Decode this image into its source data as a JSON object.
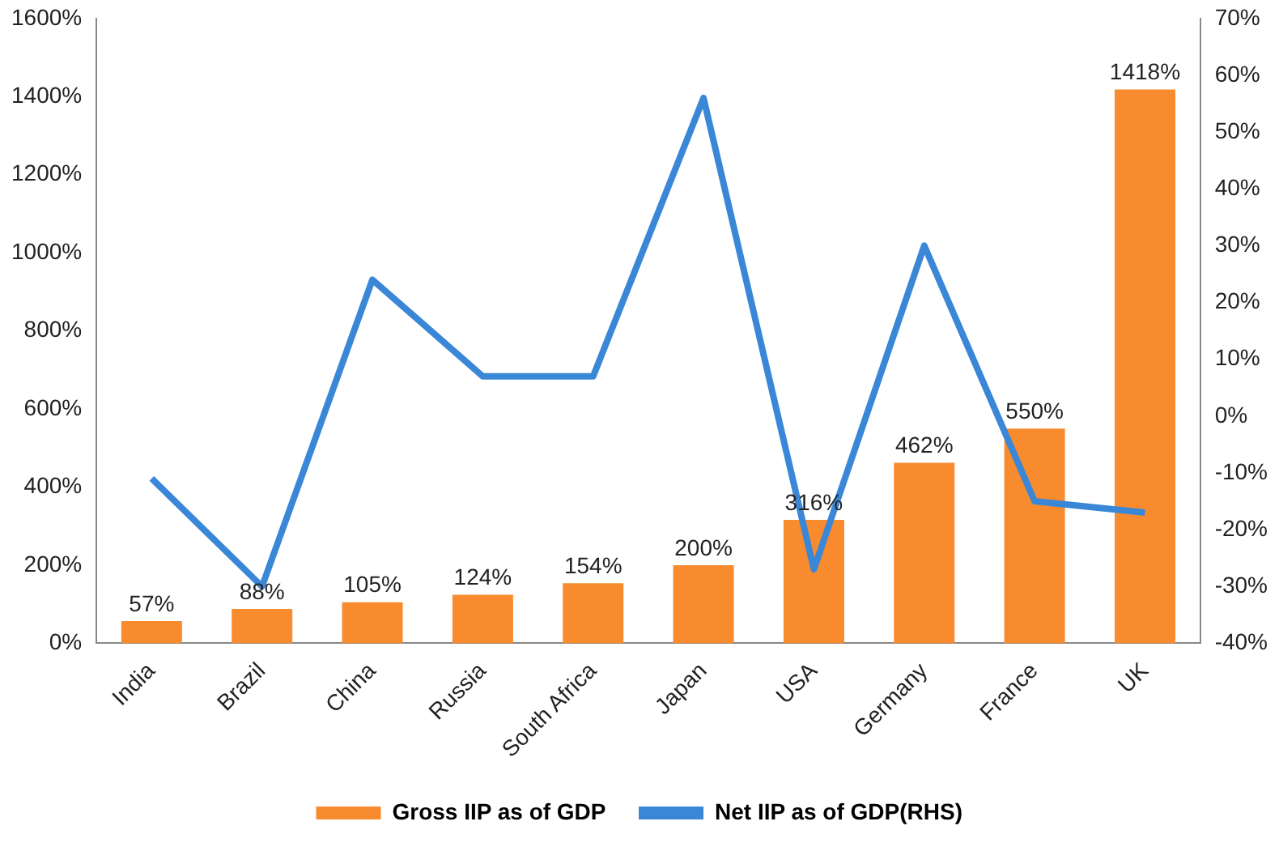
{
  "chart_data": {
    "type": "bar",
    "categories": [
      "India",
      "Brazil",
      "China",
      "Russia",
      "South Africa",
      "Japan",
      "USA",
      "Germany",
      "France",
      "UK"
    ],
    "series": [
      {
        "name": "Gross IIP as of GDP",
        "color": "#f98b2f",
        "values": [
          57,
          88,
          105,
          124,
          154,
          200,
          316,
          462,
          550,
          1418
        ],
        "value_labels": [
          "57%",
          "88%",
          "105%",
          "124%",
          "154%",
          "200%",
          "316%",
          "462%",
          "550%",
          "1418%"
        ]
      },
      {
        "name": "Net IIP as of GDP(RHS)",
        "type": "line",
        "axis": "y2",
        "color": "#3a87d8",
        "values": [
          -11,
          -30,
          24,
          7,
          7,
          56,
          -27,
          30,
          -15,
          -17
        ]
      }
    ],
    "ylim": [
      0,
      1600
    ],
    "yticks": [
      {
        "value": 0,
        "label": "0%"
      },
      {
        "value": 200,
        "label": "200%"
      },
      {
        "value": 400,
        "label": "400%"
      },
      {
        "value": 600,
        "label": "600%"
      },
      {
        "value": 800,
        "label": "800%"
      },
      {
        "value": 1000,
        "label": "1000%"
      },
      {
        "value": 1200,
        "label": "1200%"
      },
      {
        "value": 1400,
        "label": "1400%"
      },
      {
        "value": 1600,
        "label": "1600%"
      }
    ],
    "y2lim": [
      -40,
      70
    ],
    "y2ticks": [
      {
        "value": -40,
        "label": "-40%"
      },
      {
        "value": -30,
        "label": "-30%"
      },
      {
        "value": -20,
        "label": "-20%"
      },
      {
        "value": -10,
        "label": "-10%"
      },
      {
        "value": 0,
        "label": "0%"
      },
      {
        "value": 10,
        "label": "10%"
      },
      {
        "value": 20,
        "label": "20%"
      },
      {
        "value": 30,
        "label": "30%"
      },
      {
        "value": 40,
        "label": "40%"
      },
      {
        "value": 50,
        "label": "50%"
      },
      {
        "value": 60,
        "label": "60%"
      },
      {
        "value": 70,
        "label": "70%"
      }
    ],
    "legend": "bottom",
    "marker": "none"
  }
}
